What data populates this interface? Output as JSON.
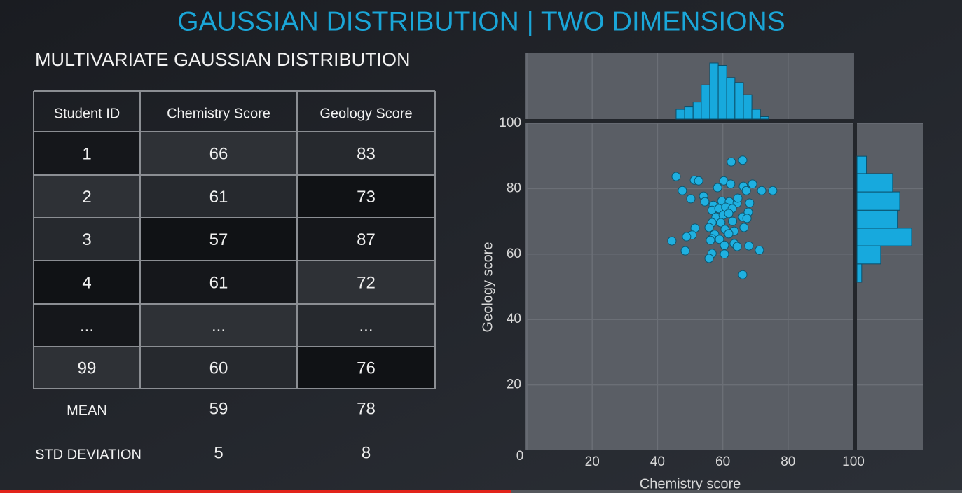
{
  "title": "GAUSSIAN DISTRIBUTION | TWO DIMENSIONS",
  "subtitle": "MULTIVARIATE GAUSSIAN DISTRIBUTION",
  "table": {
    "header": [
      "Student ID",
      "Chemistry Score",
      "Geology Score"
    ],
    "rows": [
      [
        1,
        66,
        83
      ],
      [
        2,
        61,
        73
      ],
      [
        3,
        57,
        87
      ],
      [
        4,
        61,
        72
      ],
      [
        "...",
        "...",
        "..."
      ],
      [
        99,
        60,
        76
      ]
    ],
    "summary": [
      [
        "MEAN",
        59,
        78
      ],
      [
        "STD DEVIATION",
        5,
        8
      ]
    ]
  },
  "chart_data": {
    "type": "scatter",
    "x_label": "Chemistry score",
    "y_label": "Geology score",
    "x": [
      45.7,
      51.3,
      52.6,
      62.6,
      66.1,
      47.6,
      58.4,
      60.3,
      62.4,
      66.3,
      67.2,
      69.1,
      71.9,
      75.3,
      50.2,
      54.1,
      54.5,
      57.1,
      59.7,
      62.0,
      64.4,
      68.2,
      56.7,
      58.8,
      60.9,
      62.9,
      64.6,
      57.9,
      60.1,
      61.8,
      66.1,
      67.8,
      67.4,
      56.7,
      59.4,
      63.0,
      51.5,
      55.8,
      60.7,
      63.5,
      66.5,
      50.6,
      48.9,
      57.5,
      61.8,
      56.7,
      59.0,
      56.2,
      44.4,
      60.5,
      63.5,
      64.4,
      68.0,
      71.2,
      48.5,
      56.7,
      60.5,
      55.8,
      66.1
    ],
    "y": [
      83.7,
      82.6,
      82.4,
      88.2,
      88.7,
      79.4,
      80.3,
      82.4,
      81.4,
      80.7,
      79.4,
      81.4,
      79.4,
      79.4,
      76.9,
      77.7,
      76.0,
      74.9,
      76.2,
      76.0,
      75.6,
      75.6,
      73.4,
      73.9,
      74.3,
      73.9,
      77.1,
      71.3,
      71.9,
      72.4,
      71.3,
      72.8,
      70.9,
      69.6,
      69.6,
      70.0,
      67.9,
      68.1,
      67.5,
      67.0,
      68.1,
      65.8,
      65.3,
      66.0,
      66.2,
      64.7,
      64.5,
      64.2,
      64.0,
      62.7,
      63.2,
      62.3,
      62.5,
      61.2,
      61.0,
      60.2,
      60.0,
      58.7,
      53.7
    ],
    "color": "#1fb0e0",
    "xlim": [
      0,
      100
    ],
    "ylim": [
      0,
      100
    ],
    "xticks": [
      0,
      20,
      40,
      60,
      80,
      100
    ],
    "yticks": [
      20,
      40,
      60,
      80,
      100
    ],
    "grid": true,
    "x_marginal": {
      "type": "histogram",
      "bins": [
        45.7,
        48.3,
        50.9,
        53.4,
        56.0,
        58.6,
        61.2,
        63.7,
        66.3,
        68.9,
        71.5,
        74.0
      ],
      "counts": [
        4,
        5,
        7,
        14,
        23,
        22,
        17,
        15,
        10,
        4,
        1
      ],
      "color": "#17a9dd"
    },
    "y_marginal": {
      "type": "histogram",
      "bins": [
        51.4,
        57.0,
        62.5,
        67.9,
        73.4,
        79.0,
        84.6,
        89.9
      ],
      "counts": [
        2,
        10,
        23,
        17,
        18,
        15,
        4
      ],
      "color": "#17a9dd"
    }
  }
}
